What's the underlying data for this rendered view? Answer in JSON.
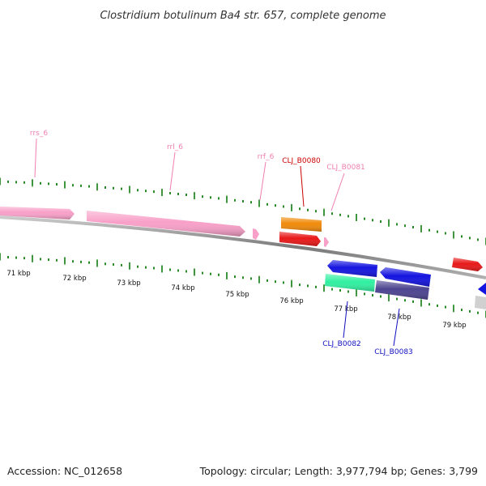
{
  "title": "Clostridium botulinum Ba4 str. 657, complete genome",
  "footer": {
    "accession": "Accession: NC_012658",
    "summary": "Topology: circular; Length: 3,977,794 bp; Genes: 3,799"
  },
  "colors": {
    "rna": "#f8a0c8",
    "rna_label": "#f080b0",
    "orange": "#f08a0a",
    "red": "#e81818",
    "red_label": "#cc0000",
    "blue": "#1414e0",
    "blue_label": "#1010c0",
    "teal": "#30f0a0",
    "purple": "#4c4490",
    "gray": "#d0d0d0",
    "tick": "#2a8a2a",
    "backbone": "#888888"
  },
  "scale": {
    "labels": [
      "71 kbp",
      "72 kbp",
      "73 kbp",
      "74 kbp",
      "75 kbp",
      "76 kbp",
      "77 kbp",
      "78 kbp",
      "79 kbp"
    ]
  },
  "features": {
    "rrs": {
      "label": "rrs_6"
    },
    "rrl": {
      "label": "rrl_6"
    },
    "rrf": {
      "label": "rrf_6"
    },
    "b0080": {
      "label": "CLJ_B0080"
    },
    "b0081": {
      "label": "CLJ_B0081"
    },
    "b0082": {
      "label": "CLJ_B0082"
    },
    "b0083": {
      "label": "CLJ_B0083"
    }
  }
}
